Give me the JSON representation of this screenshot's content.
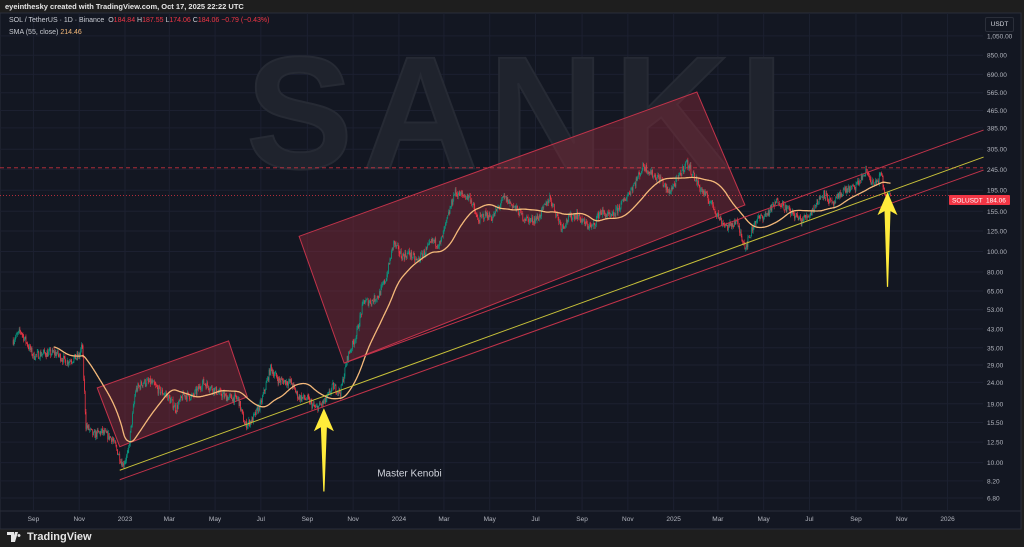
{
  "header": {
    "attribution": "eyeinthesky created with TradingView.com, Oct 17, 2025 22:22 UTC",
    "symbol_line": "SOL / TetherUS · 1D · Binance",
    "open_label": "O",
    "open": "184.84",
    "high_label": "H",
    "high": "187.55",
    "low_label": "L",
    "low": "174.06",
    "close_label": "C",
    "close": "184.06",
    "change": "−0.79 (−0.43%)",
    "sma_label": "SMA (55, close)",
    "sma_value": "214.46",
    "currency_button": "USDT"
  },
  "footer": {
    "logo_text": "TradingView"
  },
  "watermark": "SANKI",
  "colors": {
    "background": "#131722",
    "up": "#089981",
    "down": "#f23645",
    "sma": "#f5b97a",
    "channel": "#c2334a",
    "support": "#c9c23a",
    "arrow": "#ffeb3b",
    "box_fill": "#8a2a3a"
  },
  "chart_data": {
    "type": "candlestick",
    "symbol": "SOLUSDT",
    "interval": "1D",
    "y_scale": "log",
    "ylim": [
      6.8,
      1050
    ],
    "xlim": [
      "2022-08-05",
      "2026-02-18"
    ],
    "grid": true,
    "y_ticks": [
      "1,050.00",
      "850.00",
      "690.00",
      "565.00",
      "465.00",
      "385.00",
      "305.00",
      "245.00",
      "195.00",
      "155.00",
      "125.00",
      "100.00",
      "80.00",
      "65.00",
      "53.00",
      "43.00",
      "35.00",
      "29.00",
      "24.00",
      "19.00",
      "15.50",
      "12.50",
      "10.00",
      "8.20",
      "6.80"
    ],
    "x_ticks": [
      {
        "label": "Sep",
        "date": "2022-09-01"
      },
      {
        "label": "Nov",
        "date": "2022-11-01"
      },
      {
        "label": "2023",
        "date": "2023-01-01"
      },
      {
        "label": "Mar",
        "date": "2023-03-01"
      },
      {
        "label": "May",
        "date": "2023-05-01"
      },
      {
        "label": "Jul",
        "date": "2023-07-01"
      },
      {
        "label": "Sep",
        "date": "2023-09-01"
      },
      {
        "label": "Nov",
        "date": "2023-11-01"
      },
      {
        "label": "2024",
        "date": "2024-01-01"
      },
      {
        "label": "Mar",
        "date": "2024-03-01"
      },
      {
        "label": "May",
        "date": "2024-05-01"
      },
      {
        "label": "Jul",
        "date": "2024-07-01"
      },
      {
        "label": "Sep",
        "date": "2024-09-01"
      },
      {
        "label": "Nov",
        "date": "2024-11-01"
      },
      {
        "label": "2025",
        "date": "2025-01-01"
      },
      {
        "label": "Mar",
        "date": "2025-03-01"
      },
      {
        "label": "May",
        "date": "2025-05-01"
      },
      {
        "label": "Jul",
        "date": "2025-07-01"
      },
      {
        "label": "Sep",
        "date": "2025-09-01"
      },
      {
        "label": "Nov",
        "date": "2025-11-01"
      },
      {
        "label": "2026",
        "date": "2026-01-01"
      }
    ],
    "closes": [
      [
        "2022-08-05",
        38
      ],
      [
        "2022-08-15",
        42
      ],
      [
        "2022-09-01",
        32
      ],
      [
        "2022-09-15",
        33
      ],
      [
        "2022-10-01",
        33
      ],
      [
        "2022-10-15",
        30
      ],
      [
        "2022-11-01",
        32
      ],
      [
        "2022-11-05",
        36
      ],
      [
        "2022-11-10",
        15
      ],
      [
        "2022-11-20",
        13.5
      ],
      [
        "2022-12-01",
        14
      ],
      [
        "2022-12-15",
        13
      ],
      [
        "2022-12-29",
        9.8
      ],
      [
        "2023-01-05",
        11
      ],
      [
        "2023-01-15",
        22
      ],
      [
        "2023-01-25",
        24
      ],
      [
        "2023-02-05",
        24
      ],
      [
        "2023-02-15",
        22
      ],
      [
        "2023-02-25",
        21
      ],
      [
        "2023-03-10",
        18
      ],
      [
        "2023-03-20",
        21
      ],
      [
        "2023-04-01",
        20.5
      ],
      [
        "2023-04-15",
        24
      ],
      [
        "2023-05-01",
        22
      ],
      [
        "2023-05-15",
        20.5
      ],
      [
        "2023-06-01",
        20
      ],
      [
        "2023-06-10",
        15
      ],
      [
        "2023-06-20",
        16
      ],
      [
        "2023-07-01",
        19
      ],
      [
        "2023-07-14",
        28
      ],
      [
        "2023-07-25",
        24.5
      ],
      [
        "2023-08-10",
        24
      ],
      [
        "2023-08-20",
        20.5
      ],
      [
        "2023-09-01",
        20
      ],
      [
        "2023-09-12",
        18
      ],
      [
        "2023-09-25",
        19.5
      ],
      [
        "2023-10-05",
        23
      ],
      [
        "2023-10-15",
        21.5
      ],
      [
        "2023-10-25",
        32
      ],
      [
        "2023-11-05",
        40
      ],
      [
        "2023-11-15",
        58
      ],
      [
        "2023-11-25",
        58
      ],
      [
        "2023-12-05",
        62
      ],
      [
        "2023-12-15",
        75
      ],
      [
        "2023-12-25",
        110
      ],
      [
        "2024-01-05",
        95
      ],
      [
        "2024-01-15",
        98
      ],
      [
        "2024-01-25",
        90
      ],
      [
        "2024-02-05",
        100
      ],
      [
        "2024-02-15",
        112
      ],
      [
        "2024-02-25",
        108
      ],
      [
        "2024-03-05",
        140
      ],
      [
        "2024-03-15",
        190
      ],
      [
        "2024-03-25",
        185
      ],
      [
        "2024-04-05",
        180
      ],
      [
        "2024-04-15",
        140
      ],
      [
        "2024-04-25",
        150
      ],
      [
        "2024-05-05",
        145
      ],
      [
        "2024-05-20",
        180
      ],
      [
        "2024-06-01",
        165
      ],
      [
        "2024-06-15",
        145
      ],
      [
        "2024-06-25",
        140
      ],
      [
        "2024-07-05",
        145
      ],
      [
        "2024-07-20",
        180
      ],
      [
        "2024-08-05",
        130
      ],
      [
        "2024-08-15",
        145
      ],
      [
        "2024-08-25",
        150
      ],
      [
        "2024-09-05",
        135
      ],
      [
        "2024-09-15",
        130
      ],
      [
        "2024-09-25",
        155
      ],
      [
        "2024-10-10",
        145
      ],
      [
        "2024-10-25",
        170
      ],
      [
        "2024-11-10",
        210
      ],
      [
        "2024-11-22",
        255
      ],
      [
        "2024-12-05",
        230
      ],
      [
        "2024-12-15",
        220
      ],
      [
        "2024-12-25",
        190
      ],
      [
        "2025-01-05",
        215
      ],
      [
        "2025-01-18",
        265
      ],
      [
        "2025-01-25",
        240
      ],
      [
        "2025-02-05",
        200
      ],
      [
        "2025-02-20",
        170
      ],
      [
        "2025-03-05",
        140
      ],
      [
        "2025-03-15",
        130
      ],
      [
        "2025-03-25",
        140
      ],
      [
        "2025-04-07",
        105
      ],
      [
        "2025-04-20",
        140
      ],
      [
        "2025-05-05",
        150
      ],
      [
        "2025-05-20",
        175
      ],
      [
        "2025-06-05",
        155
      ],
      [
        "2025-06-20",
        140
      ],
      [
        "2025-07-01",
        150
      ],
      [
        "2025-07-20",
        190
      ],
      [
        "2025-08-01",
        165
      ],
      [
        "2025-08-15",
        195
      ],
      [
        "2025-08-30",
        200
      ],
      [
        "2025-09-15",
        240
      ],
      [
        "2025-09-25",
        205
      ],
      [
        "2025-10-05",
        230
      ],
      [
        "2025-10-10",
        180
      ],
      [
        "2025-10-17",
        184.06
      ]
    ],
    "sma_period": 55,
    "last_price_label": {
      "symbol": "SOLUSDT",
      "price": "184.06"
    },
    "drawings": {
      "boxes": [
        {
          "points": [
            [
              "2022-11-25",
              22.6
            ],
            [
              "2023-05-19",
              37.7
            ],
            [
              "2023-06-13",
              20.5
            ],
            [
              "2022-12-25",
              11.9
            ]
          ]
        },
        {
          "points": [
            [
              "2023-08-21",
              118
            ],
            [
              "2025-02-01",
              569
            ],
            [
              "2025-04-06",
              166
            ],
            [
              "2023-10-20",
              29.6
            ]
          ]
        }
      ],
      "trendlines": [
        {
          "color": "support",
          "from": [
            "2022-12-25",
            9.2
          ],
          "to": [
            "2026-02-18",
            280
          ]
        },
        {
          "color": "channel",
          "from": [
            "2022-12-25",
            8.3
          ],
          "to": [
            "2026-02-18",
            243
          ]
        },
        {
          "color": "channel",
          "from": [
            "2023-10-20",
            29.6
          ],
          "to": [
            "2026-02-18",
            376
          ]
        }
      ],
      "horizontal_levels": [
        {
          "price": 249,
          "style": "dashed"
        },
        {
          "price": 184.06,
          "style": "dotted"
        }
      ],
      "arrows": [
        {
          "date": "2023-09-23",
          "tip": 18.1,
          "tail": 7.3
        },
        {
          "date": "2025-10-13",
          "tip": 191,
          "tail": 68
        }
      ],
      "text": [
        {
          "label": "Master Kenobi",
          "date": "2024-01-15",
          "price": 8.6
        }
      ]
    }
  }
}
